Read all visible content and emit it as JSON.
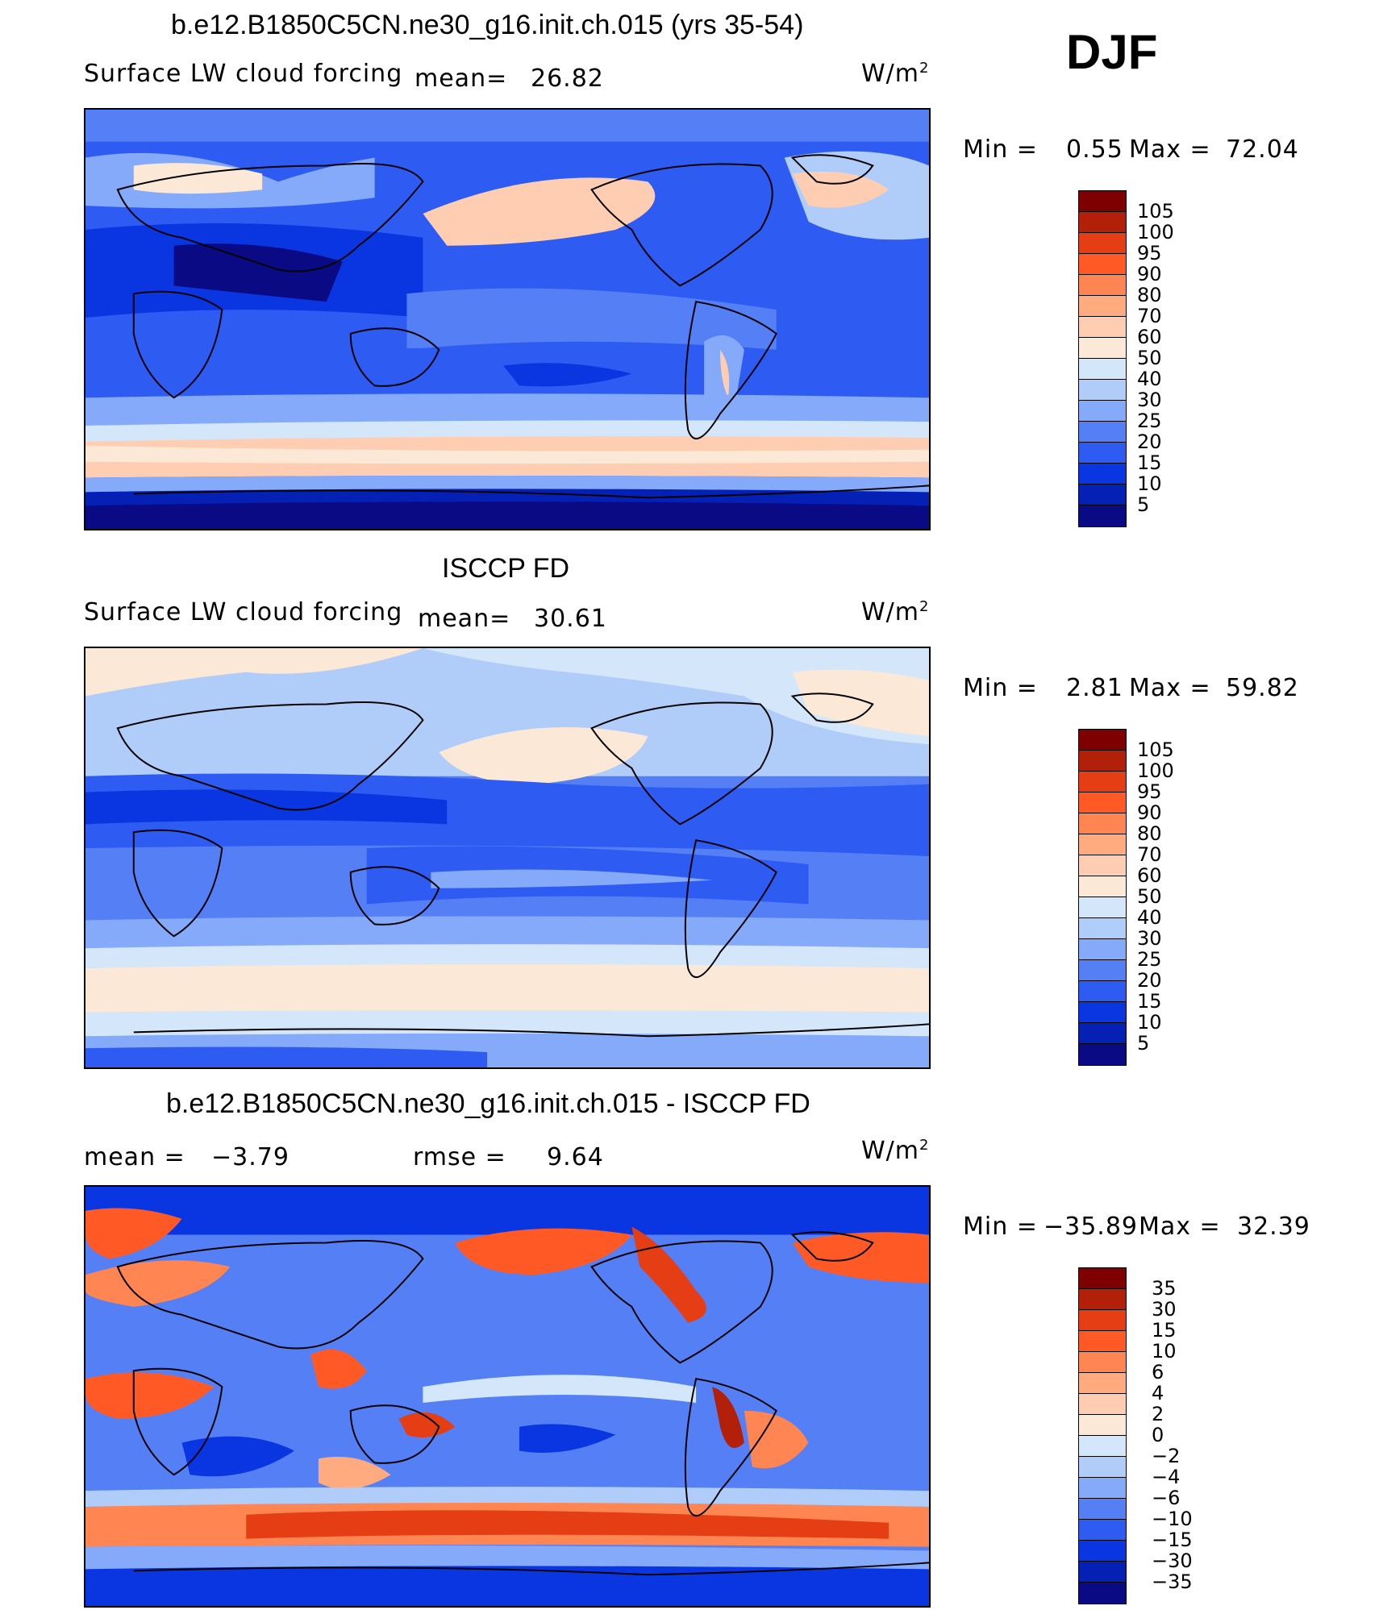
{
  "season": "DJF",
  "panels": [
    {
      "title": "b.e12.B1850C5CN.ne30_g16.init.ch.015 (yrs 35-54)",
      "variable": "Surface LW cloud forcing",
      "mean_label": "mean=",
      "mean": "26.82",
      "units": "W/m",
      "units_sup": "2",
      "min_label": "Min =",
      "min": "0.55",
      "max_label": "Max =",
      "max": "72.04",
      "colorbar": [
        "105",
        "100",
        "95",
        "90",
        "80",
        "70",
        "60",
        "50",
        "40",
        "30",
        "25",
        "20",
        "15",
        "10",
        "5"
      ]
    },
    {
      "title": "ISCCP FD",
      "variable": "Surface LW cloud forcing",
      "mean_label": "mean=",
      "mean": "30.61",
      "units": "W/m",
      "units_sup": "2",
      "min_label": "Min =",
      "min": "2.81",
      "max_label": "Max =",
      "max": "59.82",
      "colorbar": [
        "105",
        "100",
        "95",
        "90",
        "80",
        "70",
        "60",
        "50",
        "40",
        "30",
        "25",
        "20",
        "15",
        "10",
        "5"
      ]
    },
    {
      "title": "b.e12.B1850C5CN.ne30_g16.init.ch.015 - ISCCP FD",
      "mean_label": "mean =",
      "mean": "−3.79",
      "rmse_label": "rmse =",
      "rmse": "9.64",
      "units": "W/m",
      "units_sup": "2",
      "min_label": "Min =",
      "min": "−35.89",
      "max_label": "Max =",
      "max": "32.39",
      "colorbar": [
        "35",
        "30",
        "15",
        "10",
        "6",
        "4",
        "2",
        "0",
        "−2",
        "−4",
        "−6",
        "−10",
        "−15",
        "−30",
        "−35"
      ]
    }
  ],
  "colors": {
    "abs_scale": [
      "#7f0000",
      "#b2200a",
      "#e53d14",
      "#ff5a26",
      "#ff8552",
      "#ffab7f",
      "#ffcdb2",
      "#fce8d6",
      "#d3e6fa",
      "#b0cdfa",
      "#85aaf9",
      "#5580f5",
      "#2e5cf2",
      "#0a36e2",
      "#0520b4",
      "#0a0a84"
    ],
    "diff_scale": [
      "#7f0000",
      "#b2200a",
      "#e53d14",
      "#ff5a26",
      "#ff8552",
      "#ffab7f",
      "#ffcdb2",
      "#fce8d6",
      "#d3e6fa",
      "#b0cdfa",
      "#85aaf9",
      "#5580f5",
      "#2e5cf2",
      "#0a36e2",
      "#0520b4",
      "#0a0a84"
    ]
  }
}
